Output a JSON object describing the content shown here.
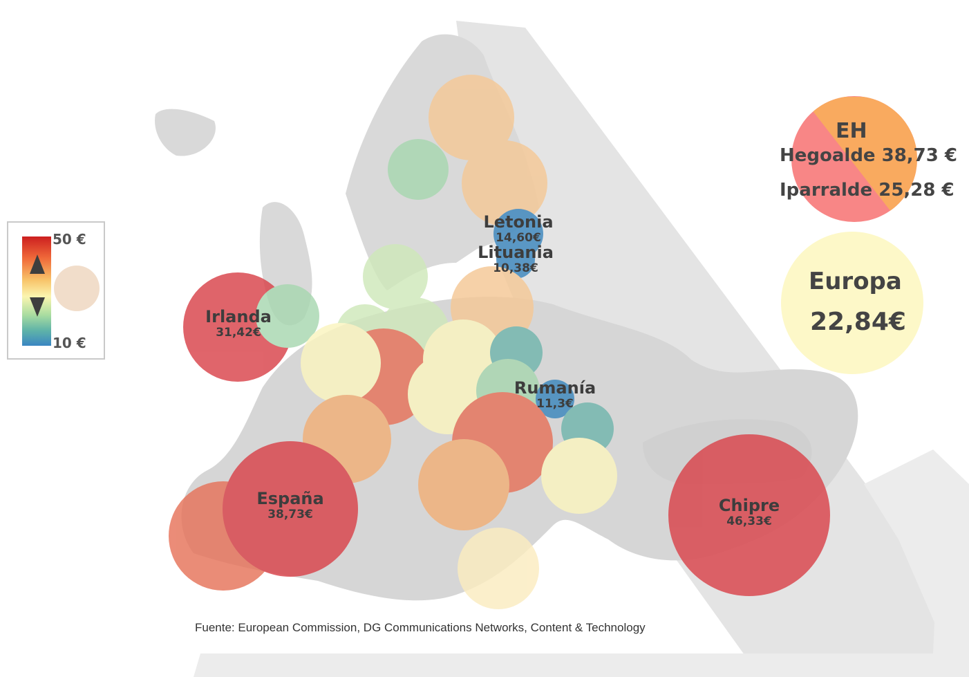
{
  "legend": {
    "max_label": "50 €",
    "min_label": "10 €"
  },
  "regions": {
    "eh": {
      "title": "EH",
      "hegoalde": "Hegoalde 38,73 €",
      "iparralde": "Iparralde 25,28 €",
      "colors": [
        "#f9a14e",
        "#f87a7a"
      ]
    },
    "europa": {
      "name": "Europa",
      "value": "22,84€",
      "color": "#fdf8c8"
    }
  },
  "countries": [
    {
      "name": "Letonia",
      "value": "14,60€"
    },
    {
      "name": "Lituania",
      "value": "10,38€"
    },
    {
      "name": "Irlanda",
      "value": "31,42€"
    },
    {
      "name": "Rumanía",
      "value": "11,3€"
    },
    {
      "name": "España",
      "value": "38,73€"
    },
    {
      "name": "Chipre",
      "value": "46,33€"
    }
  ],
  "bubble_colors": {
    "red": "#d9434a",
    "salmon": "#e6735a",
    "orange": "#f2b078",
    "peach": "#f5c896",
    "cream": "#fbecc0",
    "yellow": "#fbf5bf",
    "lightgreen": "#cfe8ba",
    "green": "#a8d7b0",
    "teal": "#72b6ad",
    "blue": "#3c87bd"
  },
  "source": "Fuente: European Commission,  DG Communications  Networks, Content & Technology"
}
